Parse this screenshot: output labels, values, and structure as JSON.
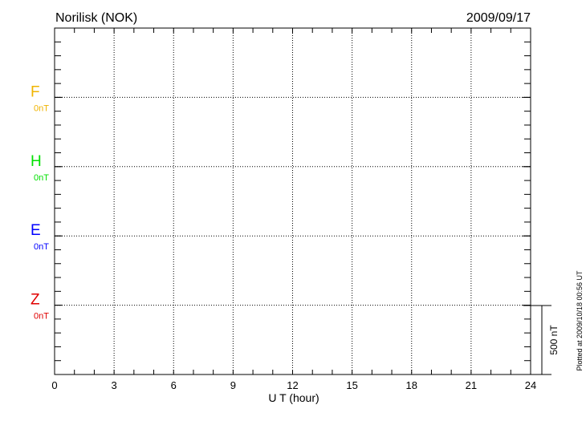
{
  "chart_data": {
    "type": "line",
    "title": "Norilisk (NOK)",
    "date": "2009/09/17",
    "xlabel": "U T (hour)",
    "xlim": [
      0,
      24
    ],
    "xticks": [
      0,
      3,
      6,
      9,
      12,
      15,
      18,
      21,
      24
    ],
    "grid": true,
    "series": [
      {
        "name": "F",
        "baseline_label": "0nT",
        "color": "#f0b400",
        "values": []
      },
      {
        "name": "H",
        "baseline_label": "0nT",
        "color": "#00e000",
        "values": []
      },
      {
        "name": "E",
        "baseline_label": "0nT",
        "color": "#0000ff",
        "values": []
      },
      {
        "name": "Z",
        "baseline_label": "0nT",
        "color": "#e00000",
        "values": []
      }
    ],
    "scale_bar_label": "500 nT",
    "footer": "Plotted at 2009/10/18 00:56 UT"
  }
}
